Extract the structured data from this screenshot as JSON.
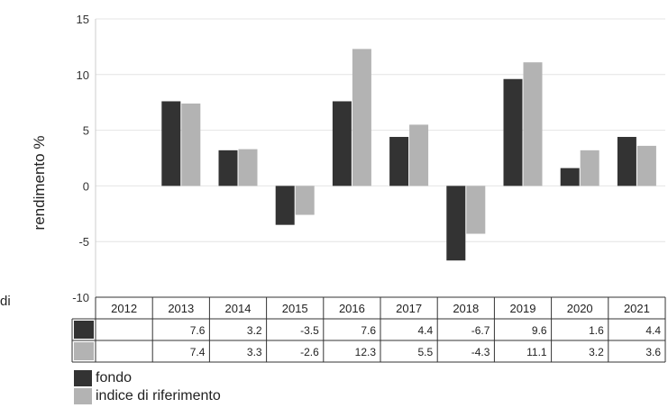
{
  "chart_data": {
    "type": "bar",
    "ylabel": "rendimento %",
    "ylim": [
      -10,
      15
    ],
    "yticks": [
      "15",
      "10",
      "5",
      "0",
      "-5",
      "-10"
    ],
    "grid": true,
    "categories": [
      "2012",
      "2013",
      "2014",
      "2015",
      "2016",
      "2017",
      "2018",
      "2019",
      "2020",
      "2021"
    ],
    "series": [
      {
        "name": "fondo",
        "color": "#333333",
        "values": [
          null,
          7.6,
          3.2,
          -3.5,
          7.6,
          4.4,
          -6.7,
          9.6,
          1.6,
          4.4
        ],
        "labels": [
          "",
          "7.6",
          "3.2",
          "-3.5",
          "7.6",
          "4.4",
          "-6.7",
          "9.6",
          "1.6",
          "4.4"
        ]
      },
      {
        "name": "indice di riferimento",
        "color": "#b3b3b3",
        "values": [
          null,
          7.4,
          3.3,
          -2.6,
          12.3,
          5.5,
          -4.3,
          11.1,
          3.2,
          3.6
        ],
        "labels": [
          "",
          "7.4",
          "3.3",
          "-2.6",
          "12.3",
          "5.5",
          "-4.3",
          "11.1",
          "3.2",
          "3.6"
        ]
      }
    ],
    "legend_placement": "bottom-left"
  },
  "stray_text": "di"
}
